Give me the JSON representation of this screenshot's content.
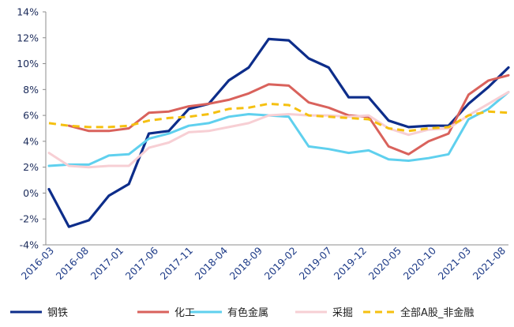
{
  "chart_data": {
    "type": "line",
    "title": "",
    "xlabel": "",
    "ylabel": "",
    "ylim": [
      -4,
      14
    ],
    "y_ticks": [
      "-4%",
      "-2%",
      "0%",
      "2%",
      "4%",
      "6%",
      "8%",
      "10%",
      "12%",
      "14%"
    ],
    "y_tick_values": [
      -4,
      -2,
      0,
      2,
      4,
      6,
      8,
      10,
      12,
      14
    ],
    "x_ticks": [
      "2016-03",
      "2016-08",
      "2017-01",
      "2017-06",
      "2017-11",
      "2018-04",
      "2018-09",
      "2019-02",
      "2019-07",
      "2019-12",
      "2020-05",
      "2020-10",
      "2021-03",
      "2021-08"
    ],
    "x": [
      "2016-03",
      "2016-06",
      "2016-09",
      "2016-12",
      "2017-03",
      "2017-06",
      "2017-09",
      "2017-12",
      "2018-03",
      "2018-06",
      "2018-09",
      "2018-12",
      "2019-03",
      "2019-06",
      "2019-09",
      "2019-12",
      "2020-03",
      "2020-06",
      "2020-09",
      "2020-12",
      "2021-03",
      "2021-06",
      "2021-09",
      "2021-12"
    ],
    "grid": false,
    "legend_position": "bottom",
    "series": [
      {
        "name": "钢铁",
        "color": "#0d2d8a",
        "dash": "solid",
        "values": [
          0.3,
          -2.6,
          -2.1,
          -0.2,
          0.7,
          4.6,
          4.8,
          6.5,
          6.9,
          8.7,
          9.7,
          11.9,
          11.8,
          10.4,
          9.7,
          7.4,
          7.4,
          5.6,
          5.1,
          5.2,
          5.2,
          6.9,
          8.2,
          9.7
        ]
      },
      {
        "name": "化工",
        "color": "#d9625c",
        "dash": "solid",
        "values": [
          null,
          5.2,
          4.8,
          4.8,
          5.0,
          6.2,
          6.3,
          6.7,
          6.9,
          7.2,
          7.7,
          8.4,
          8.3,
          7.0,
          6.6,
          6.0,
          5.9,
          3.6,
          3.0,
          4.0,
          4.6,
          7.6,
          8.7,
          9.1
        ]
      },
      {
        "name": "有色金属",
        "color": "#5fd0ee",
        "dash": "solid",
        "values": [
          2.1,
          2.2,
          2.2,
          2.9,
          3.0,
          4.2,
          4.6,
          5.2,
          5.4,
          5.9,
          6.1,
          6.0,
          5.9,
          3.6,
          3.4,
          3.1,
          3.3,
          2.6,
          2.5,
          2.7,
          3.0,
          5.7,
          6.5,
          7.8
        ]
      },
      {
        "name": "采掘",
        "color": "#f7cfd4",
        "dash": "solid",
        "values": [
          3.1,
          2.1,
          2.0,
          2.1,
          2.1,
          3.5,
          3.9,
          4.7,
          4.8,
          5.1,
          5.4,
          6.0,
          6.1,
          6.0,
          6.0,
          5.9,
          6.0,
          5.0,
          4.5,
          4.9,
          5.0,
          6.0,
          6.9,
          7.8
        ]
      },
      {
        "name": "全部A股_非金融",
        "color": "#f5c010",
        "dash": "dashed",
        "values": [
          5.4,
          5.2,
          5.1,
          5.1,
          5.2,
          5.6,
          5.8,
          5.9,
          6.1,
          6.5,
          6.6,
          6.9,
          6.8,
          6.0,
          5.9,
          5.8,
          5.7,
          5.0,
          4.8,
          5.0,
          5.1,
          6.0,
          6.3,
          6.2
        ]
      }
    ]
  }
}
